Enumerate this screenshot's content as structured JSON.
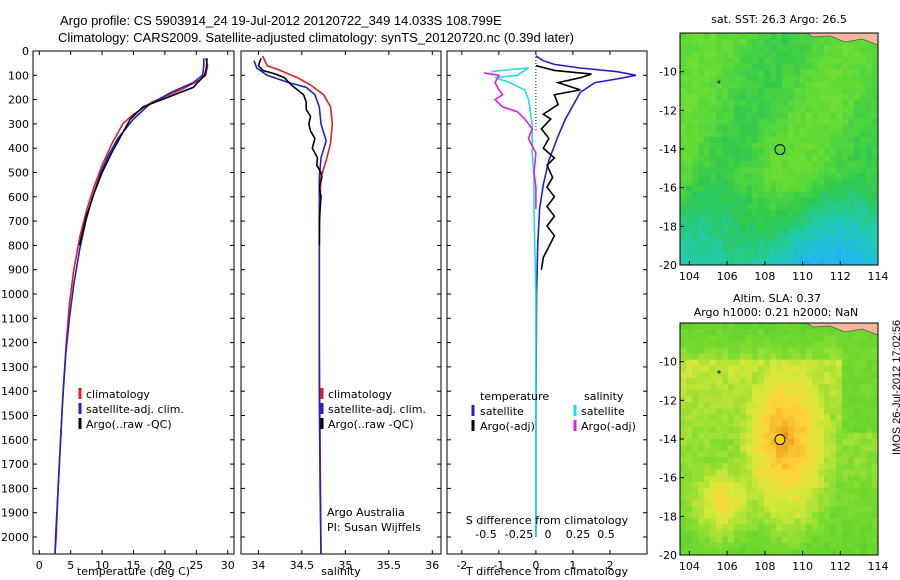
{
  "title_line1": "Argo profile: CS 5903914_24 19-Jul-2012 20120722_349 14.033S 108.799E",
  "title_line2": "Climatology: CARS2009. Satellite-adjusted climatology: synTS_20120720.nc (0.39d later)",
  "side_stamp": "IMOS 26-Jul-2012 17:02:56",
  "colors": {
    "climatology": "#e02020",
    "satellite": "#2020d0",
    "argo": "#000000",
    "salinity_satellite": "#22dde0",
    "salinity_argo": "#e020e0"
  },
  "chart_data": [
    {
      "type": "line",
      "name": "temperature-profile",
      "xlabel": "temperature (deg C)",
      "xlim": [
        -1,
        31
      ],
      "ylim": [
        2070,
        0
      ],
      "xticks": [
        0,
        5,
        10,
        15,
        20,
        25,
        30
      ],
      "yticks": [
        0,
        100,
        200,
        300,
        400,
        500,
        600,
        700,
        800,
        900,
        1000,
        1100,
        1200,
        1300,
        1400,
        1500,
        1600,
        1700,
        1800,
        1900,
        2000
      ],
      "legend": [
        "climatology",
        "satellite-adj. clim.",
        "Argo(..raw -QC)"
      ],
      "series": [
        {
          "key": "climatology",
          "points": [
            [
              26.5,
              30
            ],
            [
              26.8,
              60
            ],
            [
              26.5,
              100
            ],
            [
              25.5,
              120
            ],
            [
              22.5,
              160
            ],
            [
              18,
              210
            ],
            [
              15,
              260
            ],
            [
              13.3,
              300
            ],
            [
              11.6,
              380
            ],
            [
              10,
              470
            ],
            [
              8.7,
              560
            ],
            [
              7.6,
              650
            ],
            [
              6.5,
              760
            ],
            [
              5.5,
              900
            ],
            [
              4.8,
              1040
            ],
            [
              4.3,
              1200
            ],
            [
              3.8,
              1400
            ],
            [
              3.4,
              1600
            ],
            [
              3,
              1800
            ],
            [
              2.7,
              2000
            ],
            [
              2.5,
              2070
            ]
          ]
        },
        {
          "key": "satellite",
          "points": [
            [
              26.2,
              30
            ],
            [
              26.2,
              60
            ],
            [
              26,
              100
            ],
            [
              24.5,
              130
            ],
            [
              21,
              170
            ],
            [
              17.5,
              220
            ],
            [
              15,
              280
            ],
            [
              12.5,
              360
            ],
            [
              11,
              430
            ],
            [
              9.8,
              500
            ],
            [
              8.5,
              600
            ],
            [
              7.4,
              700
            ],
            [
              6.4,
              820
            ],
            [
              5.5,
              960
            ],
            [
              4.8,
              1100
            ],
            [
              4.2,
              1250
            ],
            [
              3.7,
              1450
            ],
            [
              3.3,
              1650
            ],
            [
              2.9,
              1850
            ],
            [
              2.6,
              2000
            ],
            [
              2.5,
              2070
            ]
          ]
        },
        {
          "key": "argo",
          "points": [
            [
              26.7,
              30
            ],
            [
              26.6,
              70
            ],
            [
              26.3,
              100
            ],
            [
              24.5,
              150
            ],
            [
              20.5,
              190
            ],
            [
              16.5,
              230
            ],
            [
              14.5,
              280
            ],
            [
              13,
              350
            ],
            [
              11.5,
              420
            ],
            [
              10,
              500
            ],
            [
              8.8,
              580
            ],
            [
              7.5,
              680
            ],
            [
              6.4,
              800
            ]
          ]
        }
      ]
    },
    {
      "type": "line",
      "name": "salinity-profile",
      "xlabel": "salinity",
      "xlim": [
        33.8,
        36.1
      ],
      "ylim": [
        2070,
        0
      ],
      "xticks": [
        34,
        34.5,
        35,
        35.5,
        36
      ],
      "legend": [
        "climatology",
        "satellite-adj. clim.",
        "Argo(..raw -QC)"
      ],
      "credit": [
        "Argo Australia",
        "PI: Susan Wijffels"
      ],
      "series": [
        {
          "key": "climatology",
          "points": [
            [
              34.05,
              20
            ],
            [
              34.1,
              60
            ],
            [
              34.25,
              80
            ],
            [
              34.45,
              110
            ],
            [
              34.6,
              140
            ],
            [
              34.75,
              180
            ],
            [
              34.83,
              230
            ],
            [
              34.85,
              300
            ],
            [
              34.83,
              380
            ],
            [
              34.78,
              450
            ],
            [
              34.72,
              520
            ],
            [
              34.71,
              600
            ],
            [
              34.7,
              800
            ],
            [
              34.7,
              1200
            ],
            [
              34.71,
              1600
            ],
            [
              34.72,
              2070
            ]
          ]
        },
        {
          "key": "satellite",
          "points": [
            [
              33.95,
              40
            ],
            [
              33.98,
              70
            ],
            [
              34.1,
              100
            ],
            [
              34.35,
              130
            ],
            [
              34.55,
              150
            ],
            [
              34.65,
              180
            ],
            [
              34.7,
              230
            ],
            [
              34.72,
              300
            ],
            [
              34.78,
              370
            ],
            [
              34.72,
              440
            ],
            [
              34.7,
              520
            ],
            [
              34.7,
              700
            ],
            [
              34.7,
              1000
            ],
            [
              34.7,
              1400
            ],
            [
              34.71,
              1800
            ],
            [
              34.72,
              2070
            ]
          ]
        },
        {
          "key": "argo",
          "points": [
            [
              34.03,
              30
            ],
            [
              34.0,
              60
            ],
            [
              34.05,
              80
            ],
            [
              34.2,
              95
            ],
            [
              34.3,
              110
            ],
            [
              34.38,
              140
            ],
            [
              34.45,
              160
            ],
            [
              34.52,
              180
            ],
            [
              34.55,
              210
            ],
            [
              34.55,
              240
            ],
            [
              34.6,
              270
            ],
            [
              34.58,
              300
            ],
            [
              34.6,
              330
            ],
            [
              34.65,
              360
            ],
            [
              34.62,
              400
            ],
            [
              34.68,
              440
            ],
            [
              34.67,
              470
            ],
            [
              34.72,
              500
            ],
            [
              34.73,
              520
            ],
            [
              34.7,
              560
            ],
            [
              34.72,
              600
            ],
            [
              34.7,
              700
            ],
            [
              34.7,
              800
            ]
          ]
        }
      ]
    },
    {
      "type": "line",
      "name": "difference-profile",
      "xlabel": "T difference from climatology",
      "x2label": "S difference from climatology",
      "xlim": [
        -2.4,
        3.0
      ],
      "ylim": [
        2070,
        0
      ],
      "xticks": [
        -2,
        -1,
        0,
        1,
        2
      ],
      "s_ticks": [
        "-0.5",
        "-0.25",
        "0",
        "0.25",
        "0.5"
      ],
      "legend_titles": [
        "temperature",
        "salinity"
      ],
      "legend_left": [
        "satellite",
        "Argo(-adj)"
      ],
      "legend_right": [
        "satellite",
        "Argo(-adj)"
      ],
      "series": [
        {
          "key": "satellite",
          "points": [
            [
              0,
              20
            ],
            [
              0.2,
              40
            ],
            [
              0.5,
              55
            ],
            [
              1.2,
              70
            ],
            [
              2.2,
              85
            ],
            [
              2.7,
              100
            ],
            [
              2.2,
              115
            ],
            [
              1.6,
              130
            ],
            [
              1.2,
              170
            ],
            [
              0.8,
              280
            ],
            [
              0.6,
              350
            ],
            [
              0.35,
              450
            ],
            [
              0.2,
              550
            ],
            [
              0.1,
              650
            ],
            [
              0.05,
              800
            ],
            [
              0.02,
              1000
            ],
            [
              0,
              1500
            ],
            [
              0,
              2000
            ]
          ]
        },
        {
          "key": "t_argo",
          "points": [
            [
              0,
              60
            ],
            [
              0.5,
              80
            ],
            [
              1.5,
              95
            ],
            [
              1.2,
              110
            ],
            [
              0.6,
              130
            ],
            [
              1.2,
              160
            ],
            [
              0.5,
              180
            ],
            [
              0.6,
              220
            ],
            [
              0.2,
              260
            ],
            [
              0.4,
              280
            ],
            [
              0.15,
              320
            ],
            [
              0.35,
              360
            ],
            [
              0.2,
              400
            ],
            [
              0.5,
              440
            ],
            [
              0.3,
              470
            ],
            [
              0.45,
              520
            ],
            [
              0.3,
              560
            ],
            [
              0.5,
              600
            ],
            [
              0.3,
              640
            ],
            [
              0.5,
              680
            ],
            [
              0.3,
              720
            ],
            [
              0.5,
              760
            ],
            [
              0.4,
              790
            ],
            [
              0.2,
              850
            ],
            [
              0.15,
              900
            ]
          ]
        },
        {
          "key": "s_sat",
          "points": [
            [
              -1.2,
              85
            ],
            [
              -0.6,
              75
            ],
            [
              -0.2,
              70
            ],
            [
              -0.5,
              100
            ],
            [
              -1.1,
              110
            ],
            [
              -0.7,
              130
            ],
            [
              -0.3,
              160
            ],
            [
              -0.2,
              200
            ],
            [
              -0.1,
              300
            ],
            [
              -0.1,
              420
            ],
            [
              -0.05,
              520
            ],
            [
              -0.05,
              650
            ],
            [
              -0.03,
              800
            ],
            [
              0,
              1000
            ],
            [
              0,
              1500
            ],
            [
              0,
              2000
            ]
          ]
        },
        {
          "key": "s_argo",
          "points": [
            [
              -1.4,
              90
            ],
            [
              -1.0,
              100
            ],
            [
              -1.1,
              130
            ],
            [
              -1.0,
              160
            ],
            [
              -0.9,
              180
            ],
            [
              -1.1,
              200
            ],
            [
              -0.9,
              230
            ],
            [
              -0.5,
              250
            ],
            [
              -0.3,
              280
            ],
            [
              -0.1,
              320
            ],
            [
              -0.2,
              360
            ],
            [
              0,
              420
            ],
            [
              -0.05,
              500
            ],
            [
              0,
              560
            ],
            [
              0,
              650
            ]
          ]
        }
      ]
    },
    {
      "type": "heatmap",
      "name": "sst-map",
      "title": "sat. SST: 26.3 Argo: 26.5",
      "xlim": [
        103.5,
        114
      ],
      "ylim": [
        -20,
        -8
      ],
      "xticks": [
        104,
        106,
        108,
        110,
        112,
        114
      ],
      "yticks": [
        -10,
        -12,
        -14,
        -16,
        -18,
        -20
      ],
      "argo_position": [
        108.8,
        -14.03
      ]
    },
    {
      "type": "heatmap",
      "name": "sla-map",
      "title": "Altim. SLA: 0.37",
      "subtitle": "Argo h1000: 0.21 h2000: NaN",
      "xlim": [
        103.5,
        114
      ],
      "ylim": [
        -20,
        -8
      ],
      "xticks": [
        104,
        106,
        108,
        110,
        112,
        114
      ],
      "yticks": [
        -10,
        -12,
        -14,
        -16,
        -18,
        -20
      ],
      "argo_position": [
        108.8,
        -14.03
      ]
    }
  ]
}
